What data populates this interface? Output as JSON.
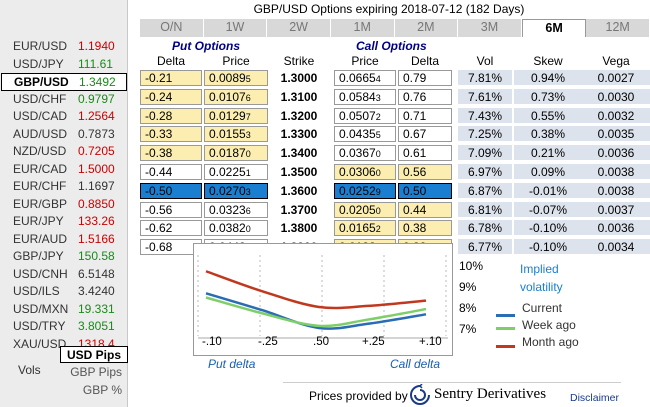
{
  "title": "GBP/USD Options expiring 2018-07-12 (182 Days)",
  "tabs": [
    "O/N",
    "1W",
    "2W",
    "1M",
    "2M",
    "3M",
    "6M",
    "12M"
  ],
  "active_tab": "6M",
  "pairs": [
    {
      "name": "EUR/USD",
      "price": "1.1940",
      "dir": "down"
    },
    {
      "name": "USD/JPY",
      "price": "111.61",
      "dir": "up"
    },
    {
      "name": "GBP/USD",
      "price": "1.3492",
      "dir": "up",
      "selected": true
    },
    {
      "name": "USD/CHF",
      "price": "0.9797",
      "dir": "up"
    },
    {
      "name": "USD/CAD",
      "price": "1.2564",
      "dir": "down"
    },
    {
      "name": "AUD/USD",
      "price": "0.7873",
      "dir": "flat"
    },
    {
      "name": "NZD/USD",
      "price": "0.7205",
      "dir": "down"
    },
    {
      "name": "EUR/CAD",
      "price": "1.5000",
      "dir": "down"
    },
    {
      "name": "EUR/CHF",
      "price": "1.1697",
      "dir": "flat"
    },
    {
      "name": "EUR/GBP",
      "price": "0.8850",
      "dir": "down"
    },
    {
      "name": "EUR/JPY",
      "price": "133.26",
      "dir": "down"
    },
    {
      "name": "EUR/AUD",
      "price": "1.5166",
      "dir": "down"
    },
    {
      "name": "GBP/JPY",
      "price": "150.58",
      "dir": "up"
    },
    {
      "name": "USD/CNH",
      "price": "6.5148",
      "dir": "flat"
    },
    {
      "name": "USD/ILS",
      "price": "3.4240",
      "dir": "flat"
    },
    {
      "name": "USD/MXN",
      "price": "19.331",
      "dir": "up"
    },
    {
      "name": "USD/TRY",
      "price": "3.8051",
      "dir": "up"
    },
    {
      "name": "XAU/USD",
      "price": "1318.4",
      "dir": "down"
    }
  ],
  "vols": {
    "label": "Vols",
    "options": [
      "USD Pips",
      "GBP Pips",
      "GBP %"
    ],
    "active": "USD Pips"
  },
  "table": {
    "put_header": "Put Options",
    "call_header": "Call Options",
    "columns": {
      "put_delta": "Delta",
      "put_price": "Price",
      "strike": "Strike",
      "call_price": "Price",
      "call_delta": "Delta",
      "vol": "Vol",
      "skew": "Skew",
      "vega": "Vega"
    },
    "rows": [
      {
        "put_delta": "-0.21",
        "put_price": "0.0089",
        "put_price_sub": "5",
        "strike": "1.3000",
        "call_price": "0.0665",
        "call_price_sub": "4",
        "call_delta": "0.79",
        "vol": "7.81%",
        "skew": "0.94%",
        "vega": "0.0027",
        "put_itm": true,
        "call_itm": false
      },
      {
        "put_delta": "-0.24",
        "put_price": "0.0107",
        "put_price_sub": "6",
        "strike": "1.3100",
        "call_price": "0.0584",
        "call_price_sub": "3",
        "call_delta": "0.76",
        "vol": "7.61%",
        "skew": "0.73%",
        "vega": "0.0030",
        "put_itm": true,
        "call_itm": false
      },
      {
        "put_delta": "-0.28",
        "put_price": "0.0129",
        "put_price_sub": "7",
        "strike": "1.3200",
        "call_price": "0.0507",
        "call_price_sub": "2",
        "call_delta": "0.71",
        "vol": "7.43%",
        "skew": "0.55%",
        "vega": "0.0032",
        "put_itm": true,
        "call_itm": false
      },
      {
        "put_delta": "-0.33",
        "put_price": "0.0155",
        "put_price_sub": "3",
        "strike": "1.3300",
        "call_price": "0.0435",
        "call_price_sub": "5",
        "call_delta": "0.67",
        "vol": "7.25%",
        "skew": "0.38%",
        "vega": "0.0035",
        "put_itm": true,
        "call_itm": false
      },
      {
        "put_delta": "-0.38",
        "put_price": "0.0187",
        "put_price_sub": "0",
        "strike": "1.3400",
        "call_price": "0.0367",
        "call_price_sub": "0",
        "call_delta": "0.61",
        "vol": "7.09%",
        "skew": "0.21%",
        "vega": "0.0036",
        "put_itm": true,
        "call_itm": false
      },
      {
        "put_delta": "-0.44",
        "put_price": "0.0225",
        "put_price_sub": "1",
        "strike": "1.3500",
        "call_price": "0.0306",
        "call_price_sub": "0",
        "call_delta": "0.56",
        "vol": "6.97%",
        "skew": "0.09%",
        "vega": "0.0038",
        "put_itm": false,
        "call_itm": true
      },
      {
        "put_delta": "-0.50",
        "put_price": "0.0270",
        "put_price_sub": "3",
        "strike": "1.3600",
        "call_price": "0.0252",
        "call_price_sub": "9",
        "call_delta": "0.50",
        "vol": "6.87%",
        "skew": "-0.01%",
        "vega": "0.0038",
        "put_itm": false,
        "call_itm": true,
        "atm": true
      },
      {
        "put_delta": "-0.56",
        "put_price": "0.0323",
        "put_price_sub": "6",
        "strike": "1.3700",
        "call_price": "0.0205",
        "call_price_sub": "0",
        "call_delta": "0.44",
        "vol": "6.81%",
        "skew": "-0.07%",
        "vega": "0.0037",
        "put_itm": false,
        "call_itm": true
      },
      {
        "put_delta": "-0.62",
        "put_price": "0.0382",
        "put_price_sub": "0",
        "strike": "1.3800",
        "call_price": "0.0165",
        "call_price_sub": "2",
        "call_delta": "0.38",
        "vol": "6.78%",
        "skew": "-0.10%",
        "vega": "0.0036",
        "put_itm": false,
        "call_itm": true
      },
      {
        "put_delta": "-0.68",
        "put_price": "0.0448",
        "put_price_sub": "2",
        "strike": "1.3900",
        "call_price": "0.0132",
        "call_price_sub": "1",
        "call_delta": "0.32",
        "vol": "6.77%",
        "skew": "-0.10%",
        "vega": "0.0034",
        "put_itm": false,
        "call_itm": true
      }
    ]
  },
  "chart": {
    "title_line1": "Implied",
    "title_line2": "volatility",
    "put_delta_label": "Put delta",
    "call_delta_label": "Call delta",
    "colors": {
      "current": "#2a6db5",
      "week": "#7ecf6a",
      "month": "#c0391f"
    }
  },
  "chart_data": {
    "type": "line",
    "title": "Implied volatility",
    "x_tick_labels": [
      "-.10",
      "-.25",
      ".50",
      "+.25",
      "+.10"
    ],
    "xlabel": "",
    "ylabel": "",
    "y_tick_labels": [
      "10%",
      "9%",
      "8%",
      "7%"
    ],
    "ylim": [
      6.5,
      10.2
    ],
    "legend_position": "right",
    "series": [
      {
        "name": "Current",
        "values": [
          8.7,
          7.9,
          7.05,
          7.25,
          7.7
        ]
      },
      {
        "name": "Week ago",
        "values": [
          8.5,
          7.75,
          7.15,
          7.45,
          7.95
        ]
      },
      {
        "name": "Month ago",
        "values": [
          9.75,
          8.8,
          8.05,
          8.1,
          8.35
        ]
      }
    ]
  },
  "footer": {
    "prices_by": "Prices provided by",
    "provider": "Sentry Derivatives",
    "disclaimer": "Disclaimer"
  }
}
